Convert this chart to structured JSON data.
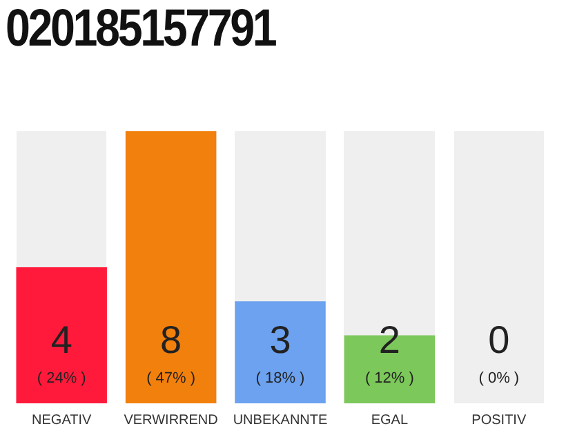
{
  "chart_data": {
    "type": "bar",
    "title": "020185157791",
    "categories": [
      "NEGATIV",
      "VERWIRREND",
      "UNBEKANNTE",
      "EGAL",
      "POSITIV"
    ],
    "values": [
      4,
      8,
      3,
      2,
      0
    ],
    "colors": [
      "#ff1a3c",
      "#f2800d",
      "#6ca2f0",
      "#7cc85a",
      "#d0d0d0"
    ],
    "ylim": [
      0,
      8
    ],
    "tick_labels": "x",
    "grid": false,
    "legend": false,
    "data_labels": true,
    "annotations": [
      "( 24% )",
      "( 47% )",
      "( 18% )",
      "( 12% )",
      "( 0% )"
    ]
  }
}
